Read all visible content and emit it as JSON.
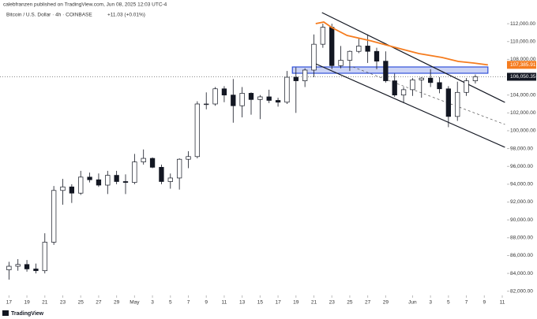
{
  "header": {
    "credit": "calebfranzen published on TradingView.com, Jun 08, 2025 12:03 UTC-4",
    "symbol": "Bitcoin / U.S. Dollar · 4h · COINBASE",
    "change": "+11.03 (+0.01%)"
  },
  "footer": {
    "brand": "TradingView"
  },
  "chart_data": {
    "type": "candlestick",
    "x": [
      0,
      1,
      2,
      3,
      4,
      5,
      6,
      7,
      8,
      9,
      10,
      11,
      12,
      13,
      14,
      15,
      16,
      17,
      18,
      19,
      20,
      21,
      22,
      23,
      24,
      25,
      26,
      27,
      28,
      29,
      30,
      31,
      32,
      33,
      34,
      35,
      36,
      37,
      38,
      39,
      40,
      41,
      42,
      43,
      44,
      45,
      46,
      47,
      48,
      49,
      50,
      51,
      52
    ],
    "open": [
      84400,
      84800,
      85000,
      84500,
      84300,
      87500,
      93300,
      93700,
      93000,
      94800,
      94500,
      93900,
      95000,
      94300,
      94200,
      96500,
      96900,
      95900,
      94300,
      94700,
      96800,
      97100,
      103000,
      103000,
      104700,
      104000,
      102800,
      104200,
      103500,
      103800,
      103400,
      103200,
      106000,
      105600,
      106800,
      109700,
      111600,
      107300,
      107900,
      108900,
      109500,
      108900,
      107800,
      105600,
      104000,
      104600,
      105700,
      105900,
      105400,
      104700,
      101600,
      104300,
      105600
    ],
    "high": [
      85300,
      85600,
      85500,
      85100,
      88500,
      93800,
      94600,
      94000,
      95500,
      95300,
      95200,
      95500,
      95500,
      95100,
      97400,
      97900,
      97000,
      96200,
      95200,
      96900,
      97700,
      103300,
      104300,
      104900,
      105000,
      105800,
      104900,
      104300,
      104000,
      104600,
      103700,
      106700,
      107100,
      107000,
      110800,
      112000,
      112000,
      109500,
      109000,
      110400,
      110800,
      109300,
      108900,
      106400,
      104900,
      105900,
      106000,
      106900,
      106000,
      105000,
      105500,
      105900,
      106300
    ],
    "low": [
      83300,
      84300,
      84200,
      84000,
      84000,
      87200,
      91700,
      91900,
      92800,
      94200,
      93700,
      92900,
      94000,
      92900,
      94000,
      96200,
      95800,
      94000,
      93500,
      93400,
      95800,
      96900,
      102400,
      102800,
      103200,
      100900,
      101500,
      101800,
      101300,
      103100,
      102700,
      103000,
      102000,
      104900,
      106000,
      109300,
      106900,
      107000,
      106700,
      108700,
      107600,
      106900,
      105400,
      103800,
      103100,
      103900,
      103700,
      104900,
      104200,
      100400,
      101100,
      103900,
      105300
    ],
    "close": [
      84800,
      85000,
      84500,
      84300,
      87500,
      93300,
      93700,
      93000,
      94800,
      94500,
      93900,
      95000,
      94300,
      94200,
      96500,
      96900,
      95900,
      94300,
      94700,
      96800,
      97100,
      103000,
      103000,
      104700,
      104000,
      102800,
      104200,
      103500,
      103800,
      103400,
      103200,
      106000,
      105600,
      106800,
      109700,
      111600,
      107300,
      107900,
      108900,
      109500,
      108900,
      107800,
      105600,
      104000,
      104600,
      105700,
      105900,
      105400,
      104700,
      101600,
      104300,
      105600,
      106050.35
    ],
    "up_color": "#ffffff",
    "down_color": "#131722",
    "edge_color": "#131722",
    "series": [
      {
        "x": [
          34.2,
          35.1,
          36.0,
          37.7,
          40.4,
          43.0,
          45.7,
          48.3,
          50.1,
          51.8,
          53.4
        ],
        "values": [
          112010,
          112186,
          111568,
          110685,
          110066,
          109359,
          108653,
          108211,
          107770,
          107593,
          107385.91
        ],
        "color": "#f57c1f"
      }
    ],
    "trendlines": [
      {
        "x": [
          34.9,
          55.3
        ],
        "values": [
          113247,
          103176
        ],
        "color": "#131722",
        "dashed": false
      },
      {
        "x": [
          34.0,
          55.3
        ],
        "values": [
          107593,
          98141
        ],
        "color": "#131722",
        "dashed": false
      },
      {
        "x": [
          38.35,
          55.3
        ],
        "values": [
          107151,
          100703
        ],
        "color": "#555555",
        "dashed": true
      }
    ],
    "zone": {
      "x": [
        31.6,
        53.4
      ],
      "values": [
        106445,
        107151
      ],
      "color": "#3050d8"
    },
    "price_labels": [
      {
        "value": 107385.91,
        "label": "107,385.91",
        "color": "#f57c1f"
      },
      {
        "value": 106050.35,
        "label": "106,050.35",
        "color": "#131722"
      }
    ],
    "xlim": [
      -1,
      55
    ],
    "xticks": [
      {
        "value": 0,
        "label": "17"
      },
      {
        "value": 2,
        "label": "19"
      },
      {
        "value": 4,
        "label": "21"
      },
      {
        "value": 6,
        "label": "23"
      },
      {
        "value": 8,
        "label": "25"
      },
      {
        "value": 10,
        "label": "27"
      },
      {
        "value": 12,
        "label": "29"
      },
      {
        "value": 14,
        "label": "May"
      },
      {
        "value": 16,
        "label": "3"
      },
      {
        "value": 18,
        "label": "5"
      },
      {
        "value": 20,
        "label": "7"
      },
      {
        "value": 22,
        "label": "9"
      },
      {
        "value": 24,
        "label": "11"
      },
      {
        "value": 26,
        "label": "13"
      },
      {
        "value": 28,
        "label": "15"
      },
      {
        "value": 30,
        "label": "17"
      },
      {
        "value": 32,
        "label": "19"
      },
      {
        "value": 34,
        "label": "21"
      },
      {
        "value": 36,
        "label": "23"
      },
      {
        "value": 38,
        "label": "25"
      },
      {
        "value": 40,
        "label": "27"
      },
      {
        "value": 42,
        "label": "29"
      },
      {
        "value": 45,
        "label": "Jun"
      },
      {
        "value": 47,
        "label": "3"
      },
      {
        "value": 49,
        "label": "5"
      },
      {
        "value": 51,
        "label": "7"
      },
      {
        "value": 53,
        "label": "9"
      },
      {
        "value": 55,
        "label": "11"
      }
    ],
    "ylim": [
      81800,
      113600
    ],
    "yticks": [
      {
        "value": 82000,
        "label": "82,000.00"
      },
      {
        "value": 84000,
        "label": "84,000.00"
      },
      {
        "value": 86000,
        "label": "86,000.00"
      },
      {
        "value": 88000,
        "label": "88,000.00"
      },
      {
        "value": 90000,
        "label": "90,000.00"
      },
      {
        "value": 92000,
        "label": "92,000.00"
      },
      {
        "value": 94000,
        "label": "94,000.00"
      },
      {
        "value": 96000,
        "label": "96,000.00"
      },
      {
        "value": 98000,
        "label": "98,000.00"
      },
      {
        "value": 100000,
        "label": "100,000.00"
      },
      {
        "value": 102000,
        "label": "102,000.00"
      },
      {
        "value": 104000,
        "label": "104,000.00"
      },
      {
        "value": 106000,
        "label": "106,000.00"
      },
      {
        "value": 108000,
        "label": "108,000.00"
      },
      {
        "value": 110000,
        "label": "110,000.00"
      },
      {
        "value": 112000,
        "label": "112,000.00"
      }
    ]
  }
}
